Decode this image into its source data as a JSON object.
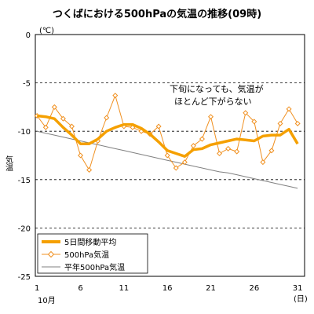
{
  "chart_data": {
    "type": "line",
    "title": "つくばにおける500hPaの気温の推移(09時)",
    "ylabel": "気温",
    "yunit": "(℃)",
    "xunit": "(日)",
    "month_label": "10月",
    "ylim": [
      -25,
      0
    ],
    "xlim": [
      1,
      31
    ],
    "yticks": [
      0,
      -5,
      -10,
      -15,
      -20,
      -25
    ],
    "xticks": [
      1,
      6,
      11,
      16,
      21,
      26,
      31
    ],
    "grid": "dashed horizontal at -5, -10, -15, -20",
    "annotation": [
      "下旬になっても、気温が",
      "ほとんど下がらない"
    ],
    "x": [
      1,
      2,
      3,
      4,
      5,
      6,
      7,
      8,
      9,
      10,
      11,
      12,
      13,
      14,
      15,
      16,
      17,
      18,
      19,
      20,
      21,
      22,
      23,
      24,
      25,
      26,
      27,
      28,
      29,
      30,
      31
    ],
    "series": [
      {
        "name": "5日間移動平均",
        "color": "#f5a000",
        "style": "thick-line",
        "values": [
          -8.4,
          -8.5,
          -8.7,
          -9.6,
          -10.4,
          -11.3,
          -11.3,
          -10.8,
          -10.0,
          -9.6,
          -9.3,
          -9.3,
          -9.7,
          -10.3,
          -11.1,
          -12.0,
          -12.3,
          -12.6,
          -11.9,
          -11.8,
          -11.4,
          -11.2,
          -11.0,
          -10.8,
          -10.9,
          -11.0,
          -10.5,
          -10.4,
          -10.4,
          -9.8,
          -11.3
        ]
      },
      {
        "name": "500hPa気温",
        "color": "#f09020",
        "style": "line-with-diamonds",
        "values": [
          -8.4,
          -9.6,
          -7.5,
          -8.7,
          -9.5,
          -12.5,
          -14.0,
          -11.0,
          -8.6,
          -6.3,
          -9.5,
          -9.6,
          -10.0,
          -10.3,
          -9.5,
          -12.5,
          -13.8,
          -13.2,
          -11.5,
          -10.8,
          -8.5,
          -12.3,
          -11.8,
          -12.1,
          -8.1,
          -9.0,
          -13.2,
          -12.0,
          -9.2,
          -7.7,
          -9.2
        ]
      },
      {
        "name": "平年500hPa気温",
        "color": "#808080",
        "style": "thin-line",
        "values": [
          -10.0,
          -10.2,
          -10.4,
          -10.6,
          -10.8,
          -11.0,
          -11.2,
          -11.4,
          -11.6,
          -11.8,
          -12.0,
          -12.2,
          -12.4,
          -12.6,
          -12.8,
          -13.0,
          -13.2,
          -13.4,
          -13.6,
          -13.8,
          -14.0,
          -14.2,
          -14.3,
          -14.5,
          -14.7,
          -14.9,
          -15.1,
          -15.3,
          -15.5,
          -15.7,
          -15.9
        ]
      }
    ]
  }
}
